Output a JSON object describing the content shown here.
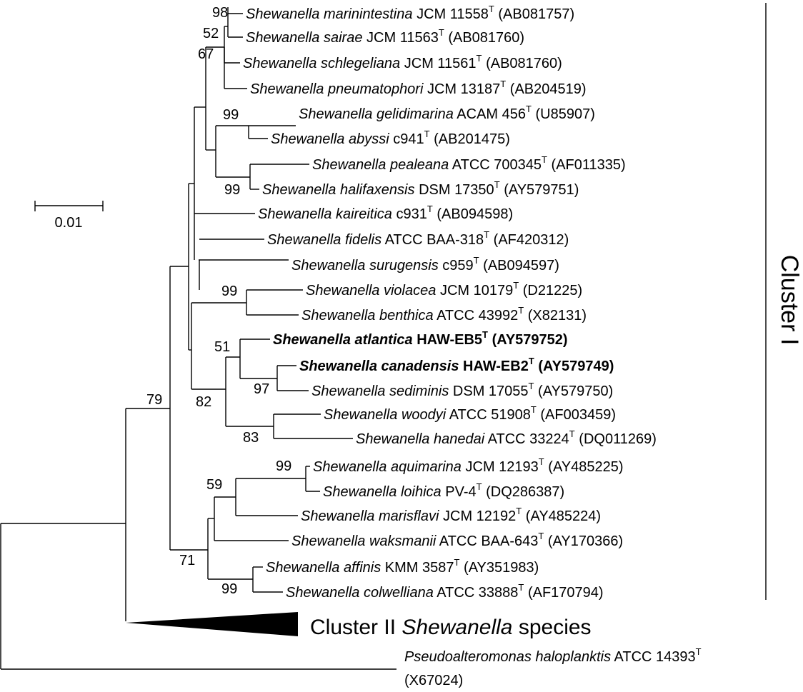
{
  "taxa": [
    {
      "genus": "Shewanella",
      "species": "marinintestina",
      "strain": "JCM 11558",
      "sup": "T",
      "acc": "(AB081757)"
    },
    {
      "genus": "Shewanella",
      "species": "sairae",
      "strain": "JCM 11563",
      "sup": "T",
      "acc": "(AB081760)"
    },
    {
      "genus": "Shewanella",
      "species": "schlegeliana",
      "strain": "JCM 11561",
      "sup": "T",
      "acc": "(AB081760)"
    },
    {
      "genus": "Shewanella",
      "species": "pneumatophori",
      "strain": "JCM 13187",
      "sup": "T",
      "acc": "(AB204519)"
    },
    {
      "genus": "Shewanella",
      "species": "gelidimarina",
      "strain": "ACAM 456",
      "sup": "T",
      "acc": "(U85907)"
    },
    {
      "genus": "Shewanella",
      "species": "abyssi",
      "strain": "c941",
      "sup": "T",
      "acc": "(AB201475)"
    },
    {
      "genus": "Shewanella",
      "species": "pealeana",
      "strain": "ATCC 700345",
      "sup": "T",
      "acc": "(AF011335)"
    },
    {
      "genus": "Shewanella",
      "species": "halifaxensis",
      "strain": "DSM 17350",
      "sup": "T",
      "acc": "(AY579751)"
    },
    {
      "genus": "Shewanella",
      "species": "kaireitica",
      "strain": "c931",
      "sup": "T",
      "acc": "(AB094598)"
    },
    {
      "genus": "Shewanella",
      "species": "fidelis",
      "strain": "ATCC BAA-318",
      "sup": "T",
      "acc": "(AF420312)"
    },
    {
      "genus": "Shewanella",
      "species": "surugensis",
      "strain": "c959",
      "sup": "T",
      "acc": "(AB094597)"
    },
    {
      "genus": "Shewanella",
      "species": "violacea",
      "strain": "JCM 10179",
      "sup": "T",
      "acc": "(D21225)"
    },
    {
      "genus": "Shewanella",
      "species": "benthica",
      "strain": "ATCC 43992",
      "sup": "T",
      "acc": "(X82131)"
    },
    {
      "genus": "Shewanella",
      "species": "atlantica",
      "strain": "HAW-EB5",
      "sup": "T",
      "acc": "(AY579752)",
      "bold": true
    },
    {
      "genus": "Shewanella",
      "species": "canadensis",
      "strain": "HAW-EB2",
      "sup": "T",
      "acc": "(AY579749)",
      "bold": true
    },
    {
      "genus": "Shewanella",
      "species": "sediminis",
      "strain": "DSM 17055",
      "sup": "T",
      "acc": "(AY579750)"
    },
    {
      "genus": "Shewanella",
      "species": "woodyi",
      "strain": "ATCC 51908",
      "sup": "T",
      "acc": "(AF003459)"
    },
    {
      "genus": "Shewanella",
      "species": "hanedai",
      "strain": "ATCC 33224",
      "sup": "T",
      "acc": "(DQ011269)"
    },
    {
      "genus": "Shewanella",
      "species": "aquimarina",
      "strain": "JCM 12193",
      "sup": "T",
      "acc": "(AY485225)"
    },
    {
      "genus": "Shewanella",
      "species": "loihica",
      "strain": "PV-4",
      "sup": "T",
      "acc": "(DQ286387)"
    },
    {
      "genus": "Shewanella",
      "species": "marisflavi",
      "strain": "JCM 12192",
      "sup": "T",
      "acc": "(AY485224)"
    },
    {
      "genus": "Shewanella",
      "species": "waksmanii",
      "strain": "ATCC BAA-643",
      "sup": "T",
      "acc": "(AY170366)"
    },
    {
      "genus": "Shewanella",
      "species": "affinis",
      "strain": "KMM 3587",
      "sup": "T",
      "acc": "(AY351983)"
    },
    {
      "genus": "Shewanella",
      "species": "colwelliana",
      "strain": "ATCC 33888",
      "sup": "T",
      "acc": "(AF170794)"
    }
  ],
  "bootstrap": [
    "98",
    "52",
    "67",
    "99",
    "99",
    "99",
    "51",
    "97",
    "82",
    "83",
    "79",
    "99",
    "59",
    "71",
    "99"
  ],
  "collapsed_clade": {
    "prefix": "Cluster II ",
    "genus": "Shewanella",
    "suffix": " species"
  },
  "outgroup": {
    "genus": "Pseudoalteromonas",
    "species": "haloplanktis",
    "strain": "ATCC 14393",
    "sup": "T",
    "acc": "(X67024)"
  },
  "scale_bar": {
    "label": "0.01"
  },
  "cluster_label": "Cluster I"
}
